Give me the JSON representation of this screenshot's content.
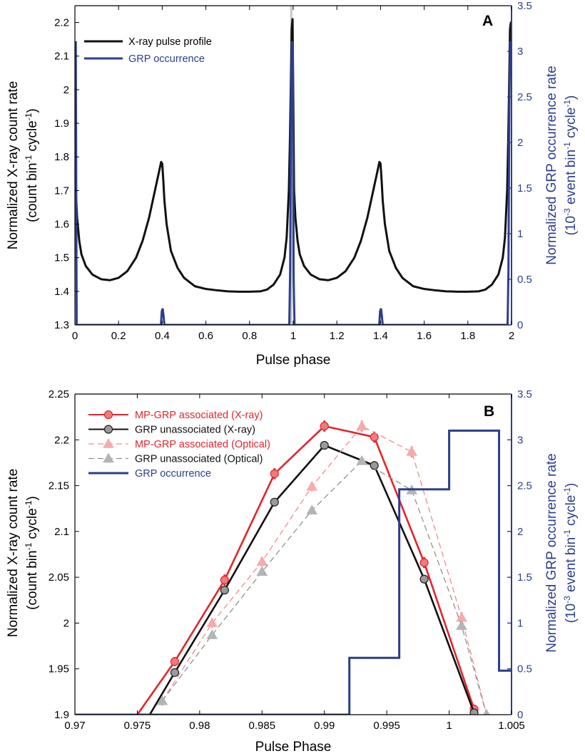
{
  "colors": {
    "xray": "#111111",
    "grp": "#2b3f8c",
    "mp_xray": "#e0262b",
    "mp_xray_fill": "#f07a7d",
    "un_xray_fill": "#9a9a9a",
    "mp_opt": "#f08a8c",
    "mp_opt_fill": "#f7aaac",
    "un_opt": "#909090",
    "un_opt_fill": "#b4b4b4",
    "highlight": "#c8c8c8"
  },
  "chart_data": [
    {
      "panel": "A",
      "type": "line",
      "panel_label": "A",
      "xlabel": "Pulse phase",
      "ylabel_line1": "Normalized X-ray count rate",
      "ylabel_line2": "(count bin",
      "ylabel_line2_sup1": "-1",
      "ylabel_line2_mid": " cycle",
      "ylabel_line2_sup2": "-1",
      "ylabel_line2_end": ")",
      "ylabel_right_line1": "Normalized GRP occurrence rate",
      "ylabel_right_line2_a": "(10",
      "ylabel_right_line2_sup1": "-3",
      "ylabel_right_line2_b": " event bin",
      "ylabel_right_line2_sup2": "-1",
      "ylabel_right_line2_c": " cycle",
      "ylabel_right_line2_sup3": "-1",
      "ylabel_right_line2_d": ")",
      "xlim": [
        0,
        2
      ],
      "ylim": [
        1.3,
        2.25
      ],
      "ylim_right": [
        0,
        3.5
      ],
      "xticks": [
        "0",
        "0.2",
        "0.4",
        "0.6",
        "0.8",
        "1",
        "1.2",
        "1.4",
        "1.6",
        "1.8",
        "2"
      ],
      "xtick_values": [
        0,
        0.2,
        0.4,
        0.6,
        0.8,
        1.0,
        1.2,
        1.4,
        1.6,
        1.8,
        2.0
      ],
      "yticks": [
        "1.3",
        "1.4",
        "1.5",
        "1.6",
        "1.7",
        "1.8",
        "1.9",
        "2",
        "2.1",
        "2.2"
      ],
      "ytick_values": [
        1.3,
        1.4,
        1.5,
        1.6,
        1.7,
        1.8,
        1.9,
        2.0,
        2.1,
        2.2
      ],
      "yticks_right": [
        "0",
        "0.5",
        "1",
        "1.5",
        "2",
        "2.5",
        "3",
        "3.5"
      ],
      "ytick_right_values": [
        0,
        0.5,
        1,
        1.5,
        2,
        2.5,
        3,
        3.5
      ],
      "highlight_band": [
        0.986,
        0.996
      ],
      "legend": [
        {
          "name": "X-ray pulse profile",
          "color_key": "xray"
        },
        {
          "name": "GRP occurrence",
          "color_key": "grp"
        }
      ],
      "series": [
        {
          "name": "X-ray pulse profile",
          "x": [
            0,
            0.004,
            0.01,
            0.02,
            0.03,
            0.05,
            0.08,
            0.12,
            0.16,
            0.2,
            0.24,
            0.28,
            0.31,
            0.34,
            0.36,
            0.38,
            0.39,
            0.395,
            0.4,
            0.405,
            0.41,
            0.42,
            0.44,
            0.47,
            0.5,
            0.55,
            0.6,
            0.65,
            0.7,
            0.75,
            0.8,
            0.85,
            0.88,
            0.91,
            0.94,
            0.96,
            0.97,
            0.98,
            0.985,
            0.99,
            0.993,
            0.997,
            1.0,
            1.004,
            1.01,
            1.02,
            1.03,
            1.05,
            1.08,
            1.12,
            1.16,
            1.2,
            1.24,
            1.28,
            1.31,
            1.34,
            1.36,
            1.38,
            1.39,
            1.395,
            1.4,
            1.405,
            1.41,
            1.42,
            1.44,
            1.47,
            1.5,
            1.55,
            1.6,
            1.65,
            1.7,
            1.75,
            1.8,
            1.85,
            1.88,
            1.91,
            1.94,
            1.96,
            1.97,
            1.98,
            1.985,
            1.99,
            1.993,
            1.997,
            2.0
          ],
          "values": [
            1.79,
            1.7,
            1.62,
            1.55,
            1.51,
            1.475,
            1.45,
            1.436,
            1.433,
            1.44,
            1.46,
            1.5,
            1.55,
            1.62,
            1.68,
            1.74,
            1.77,
            1.785,
            1.78,
            1.73,
            1.67,
            1.6,
            1.52,
            1.47,
            1.44,
            1.415,
            1.407,
            1.403,
            1.4,
            1.399,
            1.399,
            1.4,
            1.405,
            1.42,
            1.45,
            1.5,
            1.56,
            1.7,
            1.85,
            2.05,
            2.18,
            2.21,
            2.0,
            1.7,
            1.62,
            1.55,
            1.51,
            1.475,
            1.45,
            1.436,
            1.433,
            1.44,
            1.46,
            1.5,
            1.55,
            1.62,
            1.68,
            1.74,
            1.77,
            1.785,
            1.78,
            1.73,
            1.67,
            1.6,
            1.52,
            1.47,
            1.44,
            1.415,
            1.407,
            1.403,
            1.4,
            1.399,
            1.399,
            1.4,
            1.405,
            1.42,
            1.45,
            1.5,
            1.56,
            1.7,
            1.85,
            2.05,
            2.18,
            2.2,
            2.2
          ]
        },
        {
          "name": "GRP occurrence",
          "x": [
            0,
            0.004,
            0.008,
            0.394,
            0.398,
            0.402,
            0.406,
            0.41,
            0.982,
            0.986,
            0.99,
            0.994,
            0.998,
            1.002,
            1.006,
            1.394,
            1.398,
            1.402,
            1.406,
            1.41,
            1.982,
            1.986,
            1.99,
            1.994,
            1.998,
            2.0
          ],
          "values": [
            3.1,
            3.1,
            0,
            0,
            0.15,
            0.18,
            0.1,
            0,
            0,
            0.6,
            2.45,
            3.1,
            3.1,
            0.5,
            0,
            0,
            0.15,
            0.18,
            0.1,
            0,
            0,
            0.6,
            2.45,
            3.1,
            3.1,
            3.1
          ]
        }
      ]
    },
    {
      "panel": "B",
      "type": "line",
      "panel_label": "B",
      "xlabel": "Pulse Phase",
      "ylabel_line1": "Normalized X-ray count rate",
      "ylabel_line2": "(count bin",
      "ylabel_line2_sup1": "-1",
      "ylabel_line2_mid": " cycle",
      "ylabel_line2_sup2": "-1",
      "ylabel_line2_end": ")",
      "ylabel_right_line1": "Normalized GRP occurrence rate",
      "ylabel_right_line2_a": "(10",
      "ylabel_right_line2_sup1": "-3",
      "ylabel_right_line2_b": " event bin",
      "ylabel_right_line2_sup2": "-1",
      "ylabel_right_line2_c": " cycle",
      "ylabel_right_line2_sup3": "-1",
      "ylabel_right_line2_d": ")",
      "xlim": [
        0.97,
        1.005
      ],
      "ylim": [
        1.9,
        2.25
      ],
      "ylim_right": [
        0,
        3.5
      ],
      "xticks": [
        "0.97",
        "0.975",
        "0.98",
        "0.985",
        "0.99",
        "0.995",
        "1",
        "1.005"
      ],
      "xtick_values": [
        0.97,
        0.975,
        0.98,
        0.985,
        0.99,
        0.995,
        1.0,
        1.005
      ],
      "yticks": [
        "1.9",
        "1.95",
        "2",
        "2.05",
        "2.1",
        "2.15",
        "2.2",
        "2.25"
      ],
      "ytick_values": [
        1.9,
        1.95,
        2.0,
        2.05,
        2.1,
        2.15,
        2.2,
        2.25
      ],
      "yticks_right": [
        "0",
        "0.5",
        "1",
        "1.5",
        "2",
        "2.5",
        "3",
        "3.5"
      ],
      "ytick_right_values": [
        0,
        0.5,
        1,
        1.5,
        2,
        2.5,
        3,
        3.5
      ],
      "legend": [
        {
          "name": "MP-GRP associated (X-ray)",
          "color_key": "mp_xray",
          "text_color_key": "mp_xray",
          "marker": "circle",
          "dash": false
        },
        {
          "name": "GRP unassociated (X-ray)",
          "color_key": "xray",
          "text_color_key": "xray",
          "marker": "circle",
          "dash": false
        },
        {
          "name": "MP-GRP associated (Optical)",
          "color_key": "mp_opt",
          "text_color_key": "mp_xray",
          "marker": "triangle",
          "dash": true
        },
        {
          "name": "GRP unassociated (Optical)",
          "color_key": "un_opt",
          "text_color_key": "xray",
          "marker": "triangle",
          "dash": true
        },
        {
          "name": "GRP occurrence",
          "color_key": "grp",
          "text_color_key": "grp",
          "marker": "none",
          "dash": false
        }
      ],
      "series": [
        {
          "name": "MP-GRP associated (X-ray)",
          "x": [
            0.975,
            0.978,
            0.982,
            0.986,
            0.99,
            0.994,
            0.998,
            1.002
          ],
          "values": [
            1.9,
            1.958,
            2.047,
            2.163,
            2.215,
            2.203,
            2.066,
            1.906
          ],
          "errors": [
            0,
            0.005,
            0.006,
            0.006,
            0.006,
            0.006,
            0.006,
            0.005
          ],
          "marker": "circle",
          "color_key": "mp_xray",
          "fill_key": "mp_xray_fill",
          "dash": false
        },
        {
          "name": "GRP unassociated (X-ray)",
          "x": [
            0.976,
            0.978,
            0.982,
            0.986,
            0.99,
            0.994,
            0.998,
            1.002
          ],
          "values": [
            1.9,
            1.946,
            2.036,
            2.132,
            2.194,
            2.172,
            2.048,
            1.902
          ],
          "errors": [
            0,
            0,
            0,
            0,
            0,
            0,
            0,
            0
          ],
          "marker": "circle",
          "color_key": "xray",
          "fill_key": "un_xray_fill",
          "dash": false
        },
        {
          "name": "MP-GRP associated (Optical)",
          "x": [
            0.977,
            0.981,
            0.985,
            0.989,
            0.993,
            0.997,
            1.001,
            1.003
          ],
          "values": [
            1.915,
            2.0,
            2.067,
            2.149,
            2.215,
            2.187,
            2.006,
            1.9
          ],
          "errors": [
            0.005,
            0.005,
            0.005,
            0.005,
            0.006,
            0.006,
            0.006,
            0
          ],
          "marker": "triangle",
          "color_key": "mp_opt",
          "fill_key": "mp_opt_fill",
          "dash": true
        },
        {
          "name": "GRP unassociated (Optical)",
          "x": [
            0.977,
            0.981,
            0.985,
            0.989,
            0.993,
            0.997,
            1.001,
            1.003
          ],
          "values": [
            1.915,
            1.987,
            2.056,
            2.123,
            2.177,
            2.145,
            1.997,
            1.9
          ],
          "errors": [
            0,
            0,
            0,
            0,
            0,
            0,
            0,
            0
          ],
          "marker": "triangle",
          "color_key": "un_opt",
          "fill_key": "un_opt_fill",
          "dash": true
        },
        {
          "name": "GRP occurrence",
          "type": "step",
          "x": [
            0.97,
            0.992,
            0.992,
            0.996,
            0.996,
            1.0,
            1.0,
            1.004,
            1.004,
            1.005
          ],
          "values": [
            0,
            0,
            0.62,
            0.62,
            2.46,
            2.46,
            3.1,
            3.1,
            0.48,
            0.48
          ]
        }
      ]
    }
  ]
}
